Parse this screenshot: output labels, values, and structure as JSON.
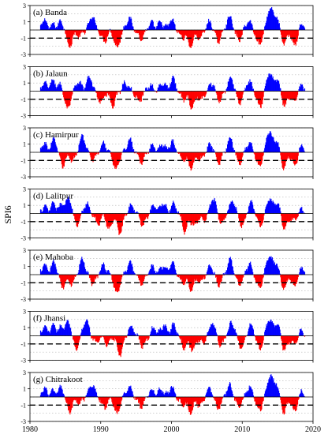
{
  "figure": {
    "ylabel": "SPI6",
    "threshold": -1,
    "x_ticks": [
      "1980",
      "1990",
      "2000",
      "2010",
      "2020"
    ],
    "y_ticks": [
      "3",
      "1",
      "-1",
      "-3"
    ],
    "colors": {
      "positive": "#0000ff",
      "negative": "#ff0000",
      "threshold_line": "#000000",
      "zero_line": "#000000",
      "grid": "#b4b4b4"
    }
  },
  "chart_data": [
    {
      "type": "bar",
      "title": "(a) Banda",
      "xlim": [
        1980,
        2020
      ],
      "ylim": [
        -3,
        3
      ],
      "x_start": 1981.5,
      "x_end": 2018.9,
      "grid": true,
      "episodes": [
        [
          1982.0,
          1.2
        ],
        [
          1983.3,
          0.6
        ],
        [
          1984.4,
          1.0
        ],
        [
          1985.6,
          -2.0
        ],
        [
          1987.0,
          -0.8
        ],
        [
          1988.8,
          1.6
        ],
        [
          1990.5,
          -1.4
        ],
        [
          1992.3,
          -2.2
        ],
        [
          1994.0,
          1.4
        ],
        [
          1995.7,
          -1.1
        ],
        [
          1997.2,
          0.8
        ],
        [
          1998.5,
          0.9
        ],
        [
          2000.0,
          1.2
        ],
        [
          2001.5,
          -0.9
        ],
        [
          2002.7,
          -2.0
        ],
        [
          2004.0,
          -1.0
        ],
        [
          2005.4,
          1.0
        ],
        [
          2006.6,
          -1.4
        ],
        [
          2008.2,
          1.6
        ],
        [
          2009.5,
          -1.2
        ],
        [
          2010.9,
          1.1
        ],
        [
          2012.4,
          -1.8
        ],
        [
          2013.9,
          2.6
        ],
        [
          2014.8,
          1.6
        ],
        [
          2015.9,
          -1.7
        ],
        [
          2017.4,
          -1.9
        ],
        [
          2018.4,
          0.7
        ]
      ]
    },
    {
      "type": "bar",
      "title": "(b) Jalaun",
      "xlim": [
        1980,
        2020
      ],
      "ylim": [
        -3,
        3
      ],
      "x_start": 1981.5,
      "x_end": 2018.9,
      "grid": true,
      "episodes": [
        [
          1982.0,
          0.9
        ],
        [
          1983.2,
          1.2
        ],
        [
          1984.3,
          0.8
        ],
        [
          1985.3,
          -2.3
        ],
        [
          1986.9,
          1.1
        ],
        [
          1988.4,
          1.7
        ],
        [
          1990.0,
          -1.3
        ],
        [
          1991.7,
          -1.8
        ],
        [
          1993.5,
          1.0
        ],
        [
          1995.4,
          -1.2
        ],
        [
          1997.0,
          0.7
        ],
        [
          1998.8,
          1.0
        ],
        [
          2000.2,
          1.5
        ],
        [
          2001.7,
          -1.0
        ],
        [
          2002.9,
          -1.9
        ],
        [
          2004.2,
          -1.0
        ],
        [
          2005.7,
          1.0
        ],
        [
          2006.8,
          -1.2
        ],
        [
          2008.4,
          1.7
        ],
        [
          2009.6,
          -1.4
        ],
        [
          2011.0,
          1.2
        ],
        [
          2012.5,
          -1.9
        ],
        [
          2013.8,
          2.2
        ],
        [
          2014.9,
          1.5
        ],
        [
          2016.0,
          -1.8
        ],
        [
          2017.3,
          -1.4
        ],
        [
          2018.4,
          0.7
        ]
      ]
    },
    {
      "type": "bar",
      "title": "(c) Hamirpur",
      "xlim": [
        1980,
        2020
      ],
      "ylim": [
        -3,
        3
      ],
      "x_start": 1981.5,
      "x_end": 2018.9,
      "grid": true,
      "episodes": [
        [
          1982.0,
          1.0
        ],
        [
          1983.4,
          1.6
        ],
        [
          1984.6,
          -1.6
        ],
        [
          1986.0,
          -1.0
        ],
        [
          1987.4,
          2.0
        ],
        [
          1988.9,
          -0.9
        ],
        [
          1990.4,
          1.1
        ],
        [
          1992.2,
          -2.1
        ],
        [
          1994.1,
          1.5
        ],
        [
          1995.8,
          -1.2
        ],
        [
          1997.3,
          0.8
        ],
        [
          1998.7,
          1.0
        ],
        [
          2000.1,
          1.3
        ],
        [
          2001.6,
          -0.9
        ],
        [
          2002.8,
          -2.0
        ],
        [
          2004.1,
          -0.9
        ],
        [
          2005.5,
          0.9
        ],
        [
          2006.7,
          -1.3
        ],
        [
          2008.3,
          1.7
        ],
        [
          2009.6,
          -1.3
        ],
        [
          2011.0,
          1.2
        ],
        [
          2012.4,
          -1.7
        ],
        [
          2013.8,
          2.5
        ],
        [
          2014.8,
          1.5
        ],
        [
          2015.9,
          -1.9
        ],
        [
          2017.4,
          -1.6
        ],
        [
          2018.4,
          0.8
        ]
      ]
    },
    {
      "type": "bar",
      "title": "(d) Lalitpur",
      "xlim": [
        1980,
        2020
      ],
      "ylim": [
        -3,
        3
      ],
      "x_start": 1981.5,
      "x_end": 2018.9,
      "grid": true,
      "episodes": [
        [
          1982.0,
          0.8
        ],
        [
          1983.3,
          1.2
        ],
        [
          1984.5,
          1.0
        ],
        [
          1985.5,
          1.8
        ],
        [
          1986.6,
          -1.4
        ],
        [
          1988.0,
          1.2
        ],
        [
          1989.6,
          -1.3
        ],
        [
          1991.2,
          -1.9
        ],
        [
          1992.7,
          -2.4
        ],
        [
          1994.3,
          1.0
        ],
        [
          1996.0,
          -1.4
        ],
        [
          1997.5,
          0.9
        ],
        [
          1998.8,
          1.3
        ],
        [
          2000.3,
          1.2
        ],
        [
          2001.9,
          -2.2
        ],
        [
          2003.2,
          -1.5
        ],
        [
          2004.5,
          -0.9
        ],
        [
          2005.9,
          1.8
        ],
        [
          2007.1,
          -1.3
        ],
        [
          2008.6,
          1.5
        ],
        [
          2010.0,
          -1.6
        ],
        [
          2011.2,
          1.3
        ],
        [
          2012.6,
          -1.5
        ],
        [
          2013.8,
          1.9
        ],
        [
          2014.9,
          1.4
        ],
        [
          2016.0,
          -1.9
        ],
        [
          2017.3,
          -0.9
        ],
        [
          2018.4,
          0.5
        ]
      ]
    },
    {
      "type": "bar",
      "title": "(e) Mahoba",
      "xlim": [
        1980,
        2020
      ],
      "ylim": [
        -3,
        3
      ],
      "x_start": 1981.5,
      "x_end": 2018.9,
      "grid": true,
      "episodes": [
        [
          1982.0,
          1.1
        ],
        [
          1983.4,
          1.5
        ],
        [
          1984.6,
          -1.5
        ],
        [
          1985.9,
          -1.1
        ],
        [
          1987.4,
          1.9
        ],
        [
          1988.9,
          -1.0
        ],
        [
          1990.4,
          1.2
        ],
        [
          1992.3,
          -2.3
        ],
        [
          1994.1,
          1.4
        ],
        [
          1995.8,
          -1.1
        ],
        [
          1997.3,
          0.9
        ],
        [
          1998.8,
          1.1
        ],
        [
          2000.1,
          1.4
        ],
        [
          2001.6,
          -1.0
        ],
        [
          2002.8,
          -1.8
        ],
        [
          2004.1,
          -0.9
        ],
        [
          2005.5,
          1.0
        ],
        [
          2006.7,
          -1.2
        ],
        [
          2008.3,
          1.8
        ],
        [
          2009.6,
          -1.2
        ],
        [
          2011.0,
          1.3
        ],
        [
          2012.4,
          -1.6
        ],
        [
          2013.8,
          2.3
        ],
        [
          2014.8,
          1.4
        ],
        [
          2015.9,
          -1.7
        ],
        [
          2017.4,
          -1.5
        ],
        [
          2018.4,
          0.8
        ]
      ]
    },
    {
      "type": "bar",
      "title": "(f) Jhansi",
      "xlim": [
        1980,
        2020
      ],
      "ylim": [
        -3,
        3
      ],
      "x_start": 1981.5,
      "x_end": 2018.9,
      "grid": true,
      "episodes": [
        [
          1982.0,
          1.0
        ],
        [
          1983.3,
          1.3
        ],
        [
          1984.5,
          1.1
        ],
        [
          1985.5,
          1.6
        ],
        [
          1986.5,
          -1.6
        ],
        [
          1987.9,
          1.9
        ],
        [
          1989.3,
          -0.8
        ],
        [
          1990.9,
          -1.0
        ],
        [
          1992.7,
          -2.3
        ],
        [
          1994.3,
          1.1
        ],
        [
          1996.0,
          -1.3
        ],
        [
          1997.5,
          0.9
        ],
        [
          1998.9,
          1.3
        ],
        [
          2000.3,
          1.3
        ],
        [
          2001.8,
          -1.5
        ],
        [
          2003.0,
          -1.7
        ],
        [
          2004.4,
          -0.9
        ],
        [
          2005.8,
          1.6
        ],
        [
          2007.0,
          -1.2
        ],
        [
          2008.5,
          1.6
        ],
        [
          2009.9,
          -1.5
        ],
        [
          2011.2,
          1.3
        ],
        [
          2012.5,
          -1.6
        ],
        [
          2013.8,
          2.0
        ],
        [
          2014.9,
          1.5
        ],
        [
          2016.0,
          -1.8
        ],
        [
          2017.3,
          -1.0
        ],
        [
          2018.4,
          0.6
        ]
      ]
    },
    {
      "type": "bar",
      "title": "(g) Chitrakoot",
      "xlim": [
        1980,
        2020
      ],
      "ylim": [
        -3,
        3
      ],
      "x_start": 1981.5,
      "x_end": 2018.9,
      "grid": true,
      "episodes": [
        [
          1982.0,
          1.0
        ],
        [
          1983.3,
          0.7
        ],
        [
          1984.4,
          1.1
        ],
        [
          1985.6,
          -1.9
        ],
        [
          1987.0,
          -0.8
        ],
        [
          1988.8,
          1.5
        ],
        [
          1990.5,
          -1.3
        ],
        [
          1992.3,
          -2.1
        ],
        [
          1994.0,
          1.3
        ],
        [
          1995.7,
          -1.2
        ],
        [
          1997.2,
          0.8
        ],
        [
          1998.5,
          0.9
        ],
        [
          2000.0,
          1.2
        ],
        [
          2001.5,
          -0.9
        ],
        [
          2002.7,
          -1.9
        ],
        [
          2004.0,
          -1.0
        ],
        [
          2005.4,
          1.0
        ],
        [
          2006.6,
          -1.4
        ],
        [
          2008.2,
          1.5
        ],
        [
          2009.5,
          -1.3
        ],
        [
          2011.0,
          1.2
        ],
        [
          2012.4,
          -1.7
        ],
        [
          2013.9,
          2.4
        ],
        [
          2014.8,
          1.6
        ],
        [
          2015.9,
          -1.9
        ],
        [
          2017.4,
          -1.8
        ],
        [
          2018.4,
          0.7
        ]
      ]
    }
  ]
}
